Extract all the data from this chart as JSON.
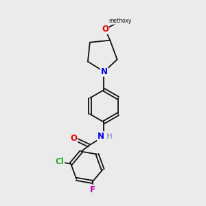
{
  "bg_color": "#ebebeb",
  "bond_color": "#111111",
  "line_width": 1.3,
  "atom_colors": {
    "N": "#0000ee",
    "O": "#dd0000",
    "Cl": "#22aa22",
    "F": "#bb00bb",
    "C": "#111111",
    "H": "#aaaacc"
  },
  "font_size": 8.5,
  "fig_size": [
    3.0,
    3.0
  ],
  "dpi": 100
}
